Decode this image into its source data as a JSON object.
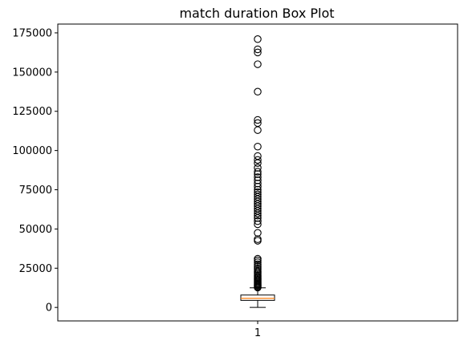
{
  "chart_data": {
    "type": "box",
    "title": "match duration Box Plot",
    "xlabel": "",
    "ylabel": "",
    "categories": [
      "1"
    ],
    "ylim": [
      -8600,
      180600
    ],
    "yticks": [
      0,
      25000,
      50000,
      75000,
      100000,
      125000,
      150000,
      175000
    ],
    "yticklabels": [
      "0",
      "25000",
      "50000",
      "75000",
      "100000",
      "125000",
      "150000",
      "175000"
    ],
    "box": {
      "whisker_low": 0,
      "q1": 4500,
      "median": 5800,
      "q3": 7900,
      "whisker_high": 12500
    },
    "outliers": [
      12700,
      13200,
      13800,
      14300,
      14900,
      15500,
      16100,
      16800,
      17400,
      18100,
      18800,
      19500,
      20300,
      21100,
      22000,
      22900,
      24000,
      25100,
      26300,
      27500,
      28800,
      30000,
      31000,
      42500,
      43500,
      47500,
      53000,
      55000,
      57000,
      58500,
      60000,
      61500,
      63000,
      64500,
      66000,
      67500,
      69000,
      70500,
      72000,
      73500,
      75000,
      77000,
      79000,
      81000,
      83000,
      85000,
      86500,
      89000,
      92000,
      94000,
      96500,
      102500,
      113000,
      117500,
      119500,
      137500,
      155000,
      162500,
      164500,
      171000
    ],
    "colors": {
      "box_edge": "#000000",
      "median": "#ff7f0e",
      "outlier_edge": "#000000"
    },
    "grid": false,
    "legend": "none"
  }
}
